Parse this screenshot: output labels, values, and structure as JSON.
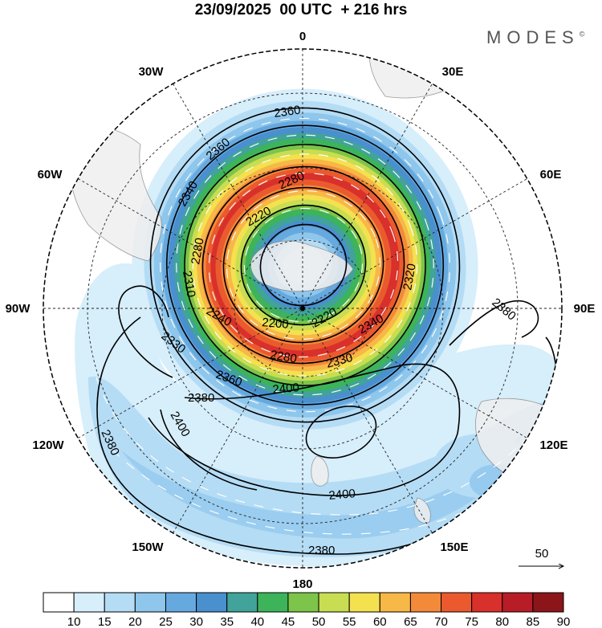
{
  "title": "23/09/2025  00 UTC  + 216 hrs",
  "logo": {
    "text": "MODES",
    "mark": "©"
  },
  "projection": {
    "type": "south-polar-stereographic",
    "center": "South Pole"
  },
  "longitude_labels": [
    {
      "id": "lon-0",
      "text": "0"
    },
    {
      "id": "lon-30e",
      "text": "30E"
    },
    {
      "id": "lon-60e",
      "text": "60E"
    },
    {
      "id": "lon-90e",
      "text": "90E"
    },
    {
      "id": "lon-120e",
      "text": "120E"
    },
    {
      "id": "lon-150e",
      "text": "150E"
    },
    {
      "id": "lon-180",
      "text": "180"
    },
    {
      "id": "lon-150w",
      "text": "150W"
    },
    {
      "id": "lon-120w",
      "text": "120W"
    },
    {
      "id": "lon-90w",
      "text": "90W"
    },
    {
      "id": "lon-60w",
      "text": "60W"
    },
    {
      "id": "lon-30w",
      "text": "30W"
    }
  ],
  "contour_labels": [
    {
      "id": "c1",
      "text": "2360"
    },
    {
      "id": "c2",
      "text": "2360"
    },
    {
      "id": "c3",
      "text": "2340"
    },
    {
      "id": "c4",
      "text": "2280"
    },
    {
      "id": "c5",
      "text": "2220"
    },
    {
      "id": "c6",
      "text": "2200"
    },
    {
      "id": "c7",
      "text": "2220"
    },
    {
      "id": "c8",
      "text": "2340"
    },
    {
      "id": "c9",
      "text": "2320"
    },
    {
      "id": "c10",
      "text": "2310"
    },
    {
      "id": "c11",
      "text": "2280"
    },
    {
      "id": "c12",
      "text": "2240"
    },
    {
      "id": "c13",
      "text": "2380"
    },
    {
      "id": "c14",
      "text": "2330"
    },
    {
      "id": "c15",
      "text": "2280"
    },
    {
      "id": "c16",
      "text": "2330"
    },
    {
      "id": "c17",
      "text": "2360"
    },
    {
      "id": "c18",
      "text": "2400"
    },
    {
      "id": "c19",
      "text": "2380"
    },
    {
      "id": "c20",
      "text": "2380"
    },
    {
      "id": "c21",
      "text": "2400"
    },
    {
      "id": "c22",
      "text": "2400"
    },
    {
      "id": "c23",
      "text": "2380"
    }
  ],
  "reference_vector": {
    "value": "50"
  },
  "colorbar": {
    "labels": [
      "10",
      "15",
      "20",
      "25",
      "30",
      "35",
      "40",
      "45",
      "50",
      "55",
      "60",
      "65",
      "70",
      "75",
      "80",
      "85",
      "90"
    ],
    "colors": [
      "#ffffff",
      "#d7eefb",
      "#b5dcf5",
      "#8ec6ec",
      "#66a9df",
      "#4a8fce",
      "#41a399",
      "#3db35a",
      "#7dc44a",
      "#c9dd52",
      "#f4e150",
      "#f7b847",
      "#f28a3a",
      "#ea5a2e",
      "#d8302b",
      "#b81c26",
      "#8c1519"
    ]
  },
  "colors": {
    "land": "#efefef",
    "coast": "#8a8a8a",
    "grid": "#222222",
    "contour": "#000000"
  }
}
